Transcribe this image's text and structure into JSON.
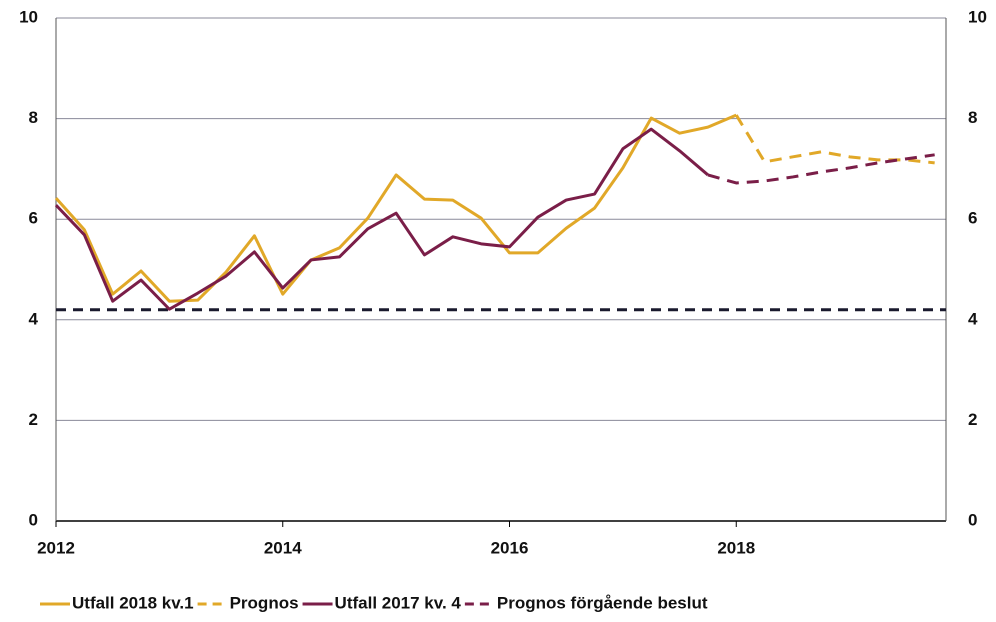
{
  "chart_data": {
    "type": "line",
    "xlim": [
      2012,
      2019.85
    ],
    "xticks": [
      2012,
      2014,
      2016,
      2018
    ],
    "ylim": [
      0,
      10
    ],
    "yticks": [
      0,
      2,
      4,
      6,
      8,
      10
    ],
    "y2lim": [
      0,
      10
    ],
    "y2ticks": [
      0,
      2,
      4,
      6,
      8,
      10
    ],
    "grid": true,
    "legend": "bottom",
    "hline": {
      "value": 4.2,
      "color": "#1a1a2e",
      "dash": true
    },
    "series": [
      {
        "name": "Utfall 2018 kv.1",
        "color": "#e1a828",
        "dash": false,
        "x": [
          2012,
          2012.25,
          2012.5,
          2012.75,
          2013,
          2013.25,
          2013.5,
          2013.75,
          2014,
          2014.25,
          2014.5,
          2014.75,
          2015,
          2015.25,
          2015.5,
          2015.75,
          2016,
          2016.25,
          2016.5,
          2016.75,
          2017,
          2017.25,
          2017.5,
          2017.75,
          2018
        ],
        "values": [
          6.42,
          5.79,
          4.51,
          4.97,
          4.37,
          4.39,
          4.95,
          5.67,
          4.51,
          5.19,
          5.43,
          6.02,
          6.88,
          6.4,
          6.38,
          6.02,
          5.33,
          5.33,
          5.82,
          6.22,
          7.02,
          8.01,
          7.71,
          7.83,
          8.07
        ]
      },
      {
        "name": "Prognos",
        "color": "#e1a828",
        "dash": true,
        "x": [
          2018,
          2018.25,
          2018.5,
          2018.75,
          2019,
          2019.25,
          2019.5,
          2019.75
        ],
        "values": [
          8.07,
          7.14,
          7.24,
          7.34,
          7.24,
          7.18,
          7.18,
          7.12
        ]
      },
      {
        "name": "Utfall 2017 kv. 4",
        "color": "#7a1e48",
        "dash": false,
        "x": [
          2012,
          2012.25,
          2012.5,
          2012.75,
          2013,
          2013.25,
          2013.5,
          2013.75,
          2014,
          2014.25,
          2014.5,
          2014.75,
          2015,
          2015.25,
          2015.5,
          2015.75,
          2016,
          2016.25,
          2016.5,
          2016.75,
          2017,
          2017.25,
          2017.5,
          2017.75
        ],
        "values": [
          6.28,
          5.69,
          4.37,
          4.79,
          4.21,
          4.53,
          4.87,
          5.35,
          4.63,
          5.19,
          5.25,
          5.81,
          6.12,
          5.29,
          5.65,
          5.51,
          5.45,
          6.04,
          6.38,
          6.5,
          7.4,
          7.79,
          7.36,
          6.88
        ]
      },
      {
        "name": "Prognos förgående beslut",
        "color": "#7a1e48",
        "dash": true,
        "x": [
          2017.75,
          2018,
          2018.25,
          2018.5,
          2018.75,
          2019,
          2019.25,
          2019.5,
          2019.75
        ],
        "values": [
          6.88,
          6.72,
          6.76,
          6.84,
          6.94,
          7.02,
          7.12,
          7.2,
          7.28
        ]
      }
    ]
  }
}
